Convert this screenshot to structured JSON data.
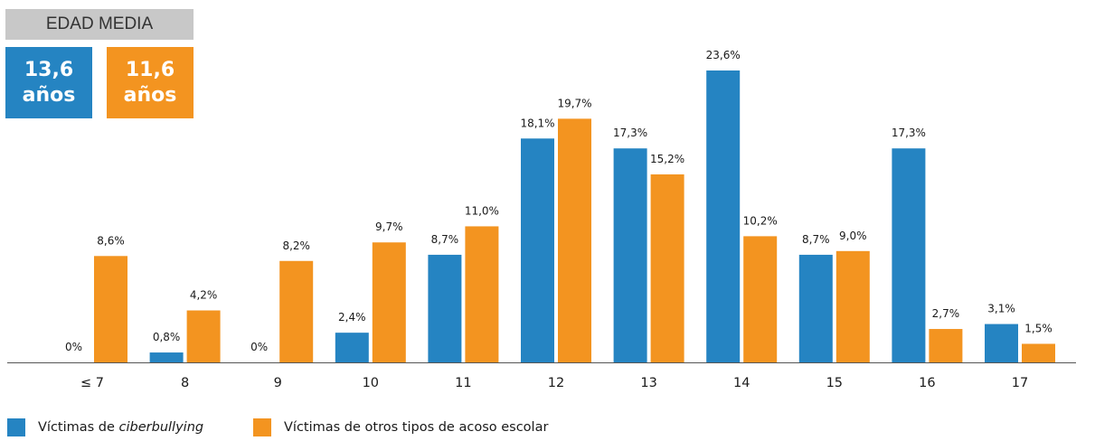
{
  "average_age": {
    "header": "EDAD MEDIA",
    "cyberbullying": {
      "value": "13,6",
      "unit": "años"
    },
    "other_bullying": {
      "value": "11,6",
      "unit": "años"
    }
  },
  "colors": {
    "cyberbullying": "#2584c2",
    "other_bullying": "#f39420",
    "header_bg": "#c8c8c8"
  },
  "legend": {
    "cyberbullying_prefix": "Víctimas de ",
    "cyberbullying_italic": "ciberbullying",
    "other_bullying": "Víctimas de otros tipos de acoso escolar"
  },
  "chart_data": {
    "type": "bar",
    "categories": [
      "≤ 7",
      "8",
      "9",
      "10",
      "11",
      "12",
      "13",
      "14",
      "15",
      "16",
      "17"
    ],
    "series": [
      {
        "name": "Víctimas de ciberbullying",
        "values": [
          0,
          0.8,
          0,
          2.4,
          8.7,
          18.1,
          17.3,
          23.6,
          8.7,
          17.3,
          3.1
        ],
        "labels": [
          "0%",
          "0,8%",
          "0%",
          "2,4%",
          "8,7%",
          "18,1%",
          "17,3%",
          "23,6%",
          "8,7%",
          "17,3%",
          "3,1%"
        ]
      },
      {
        "name": "Víctimas de otros tipos de acoso escolar",
        "values": [
          8.6,
          4.2,
          8.2,
          9.7,
          11.0,
          19.7,
          15.2,
          10.2,
          9.0,
          2.7,
          1.5
        ],
        "labels": [
          "8,6%",
          "4,2%",
          "8,2%",
          "9,7%",
          "11,0%",
          "19,7%",
          "15,2%",
          "10,2%",
          "9,0%",
          "2,7%",
          "1,5%"
        ]
      }
    ],
    "ylim": [
      0,
      23.6
    ],
    "grid": false,
    "legend_position": "bottom-left"
  }
}
